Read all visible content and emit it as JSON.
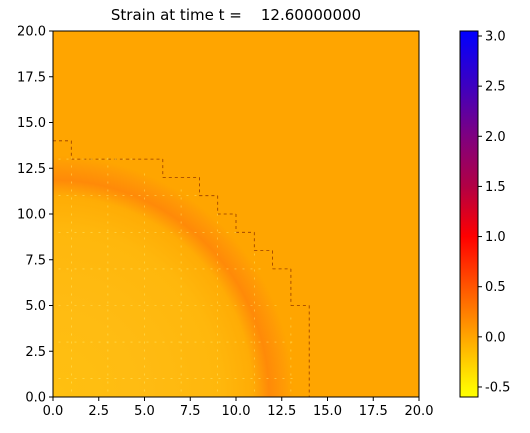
{
  "chart_data": {
    "type": "heatmap",
    "title": "Strain at time t =    12.60000000",
    "xlabel": "",
    "ylabel": "",
    "xlim": [
      0,
      20
    ],
    "ylim": [
      0,
      20
    ],
    "x_ticks": [
      "0.0",
      "2.5",
      "5.0",
      "7.5",
      "10.0",
      "12.5",
      "15.0",
      "17.5",
      "20.0"
    ],
    "y_ticks": [
      "0.0",
      "2.5",
      "5.0",
      "7.5",
      "10.0",
      "12.5",
      "15.0",
      "17.5",
      "20.0"
    ],
    "colorbar": {
      "range": [
        -0.6,
        3.05
      ],
      "ticks": [
        "-0.5",
        "0.0",
        "0.5",
        "1.0",
        "1.5",
        "2.0",
        "2.5",
        "3.0"
      ],
      "colormap": [
        "#ffff00",
        "#ff0000",
        "#0000ff"
      ]
    },
    "field": {
      "background_value": 0.0,
      "background_color": "#ffa500",
      "front_center": [
        0,
        0
      ],
      "front_radius": 14.0,
      "front_value": 0.4,
      "inner_value": -0.2
    }
  }
}
